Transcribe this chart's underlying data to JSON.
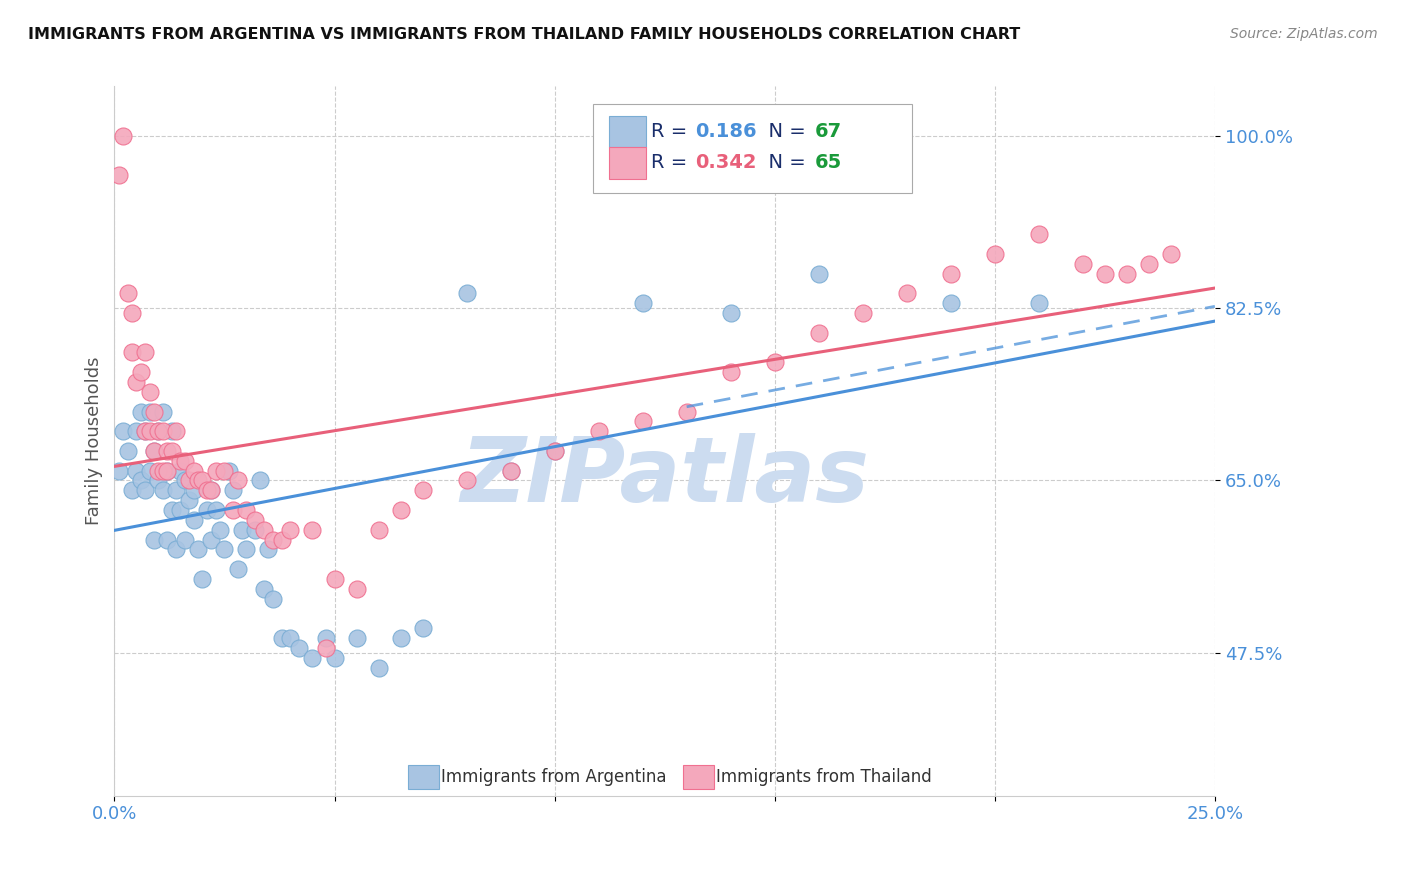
{
  "title": "IMMIGRANTS FROM ARGENTINA VS IMMIGRANTS FROM THAILAND FAMILY HOUSEHOLDS CORRELATION CHART",
  "source": "Source: ZipAtlas.com",
  "ylabel": "Family Households",
  "xlim": [
    0.0,
    0.25
  ],
  "ylim": [
    0.33,
    1.05
  ],
  "ytick_positions": [
    0.475,
    0.65,
    0.825,
    1.0
  ],
  "ytick_labels": [
    "47.5%",
    "65.0%",
    "82.5%",
    "100.0%"
  ],
  "xtick_positions": [
    0.0,
    0.05,
    0.1,
    0.15,
    0.2,
    0.25
  ],
  "xtick_labels": [
    "0.0%",
    "",
    "",
    "",
    "",
    "25.0%"
  ],
  "argentina_R": "0.186",
  "argentina_N": "67",
  "thailand_R": "0.342",
  "thailand_N": "65",
  "argentina_color": "#a8c4e2",
  "thailand_color": "#f4a8bc",
  "argentina_edge_color": "#7aadd4",
  "thailand_edge_color": "#f07090",
  "argentina_line_color": "#4a90d9",
  "thailand_line_color": "#e8607a",
  "tick_color": "#4a90d9",
  "legend_R_color": "#1a2e6b",
  "legend_N_color": "#1a9a3a",
  "watermark": "ZIPatlas",
  "watermark_color": "#ccdcf0",
  "grid_color": "#cccccc",
  "argentina_x": [
    0.001,
    0.002,
    0.003,
    0.004,
    0.005,
    0.005,
    0.006,
    0.006,
    0.007,
    0.007,
    0.008,
    0.008,
    0.009,
    0.009,
    0.01,
    0.01,
    0.011,
    0.011,
    0.012,
    0.012,
    0.013,
    0.013,
    0.014,
    0.014,
    0.015,
    0.015,
    0.016,
    0.016,
    0.017,
    0.018,
    0.018,
    0.019,
    0.02,
    0.021,
    0.022,
    0.022,
    0.023,
    0.024,
    0.025,
    0.026,
    0.027,
    0.028,
    0.029,
    0.03,
    0.032,
    0.033,
    0.034,
    0.035,
    0.036,
    0.038,
    0.04,
    0.042,
    0.045,
    0.048,
    0.05,
    0.055,
    0.06,
    0.065,
    0.07,
    0.08,
    0.09,
    0.1,
    0.12,
    0.14,
    0.16,
    0.19,
    0.21
  ],
  "argentina_y": [
    0.66,
    0.7,
    0.68,
    0.64,
    0.7,
    0.66,
    0.72,
    0.65,
    0.7,
    0.64,
    0.66,
    0.72,
    0.68,
    0.59,
    0.65,
    0.7,
    0.64,
    0.72,
    0.66,
    0.59,
    0.62,
    0.7,
    0.64,
    0.58,
    0.62,
    0.66,
    0.65,
    0.59,
    0.63,
    0.61,
    0.64,
    0.58,
    0.55,
    0.62,
    0.59,
    0.64,
    0.62,
    0.6,
    0.58,
    0.66,
    0.64,
    0.56,
    0.6,
    0.58,
    0.6,
    0.65,
    0.54,
    0.58,
    0.53,
    0.49,
    0.49,
    0.48,
    0.47,
    0.49,
    0.47,
    0.49,
    0.46,
    0.49,
    0.5,
    0.84,
    0.66,
    0.68,
    0.83,
    0.82,
    0.86,
    0.83,
    0.83
  ],
  "thailand_x": [
    0.001,
    0.002,
    0.003,
    0.004,
    0.004,
    0.005,
    0.006,
    0.007,
    0.007,
    0.008,
    0.008,
    0.009,
    0.009,
    0.01,
    0.01,
    0.011,
    0.011,
    0.012,
    0.012,
    0.013,
    0.014,
    0.015,
    0.016,
    0.017,
    0.018,
    0.019,
    0.02,
    0.021,
    0.022,
    0.023,
    0.025,
    0.027,
    0.028,
    0.03,
    0.032,
    0.034,
    0.036,
    0.038,
    0.04,
    0.045,
    0.048,
    0.05,
    0.055,
    0.06,
    0.065,
    0.07,
    0.08,
    0.09,
    0.1,
    0.11,
    0.12,
    0.13,
    0.14,
    0.15,
    0.16,
    0.17,
    0.18,
    0.19,
    0.2,
    0.21,
    0.22,
    0.225,
    0.23,
    0.235,
    0.24
  ],
  "thailand_y": [
    0.96,
    1.0,
    0.84,
    0.82,
    0.78,
    0.75,
    0.76,
    0.78,
    0.7,
    0.7,
    0.74,
    0.72,
    0.68,
    0.7,
    0.66,
    0.66,
    0.7,
    0.66,
    0.68,
    0.68,
    0.7,
    0.67,
    0.67,
    0.65,
    0.66,
    0.65,
    0.65,
    0.64,
    0.64,
    0.66,
    0.66,
    0.62,
    0.65,
    0.62,
    0.61,
    0.6,
    0.59,
    0.59,
    0.6,
    0.6,
    0.48,
    0.55,
    0.54,
    0.6,
    0.62,
    0.64,
    0.65,
    0.66,
    0.68,
    0.7,
    0.71,
    0.72,
    0.76,
    0.77,
    0.8,
    0.82,
    0.84,
    0.86,
    0.88,
    0.9,
    0.87,
    0.86,
    0.86,
    0.87,
    0.88
  ]
}
